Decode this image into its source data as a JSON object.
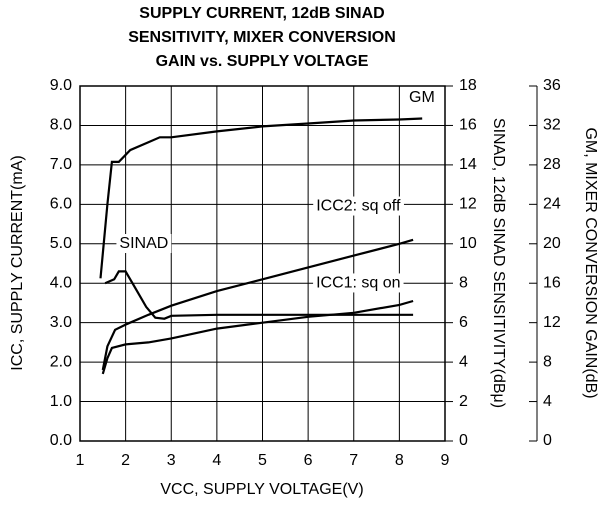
{
  "chart_data": {
    "type": "line",
    "title": [
      "SUPPLY CURRENT, 12dB SINAD",
      "SENSITIVITY, MIXER CONVERSION",
      "GAIN vs. SUPPLY VOLTAGE"
    ],
    "xlabel": "VCC, SUPPLY VOLTAGE(V)",
    "ylabel": "ICC, SUPPLY CURRENT(mA)",
    "y2label": "SINAD, 12dB SINAD SENSITIVITY(dBμ)",
    "y3label": "GM, MIXER CONVERSION GAIN(dB)",
    "xlim": [
      1,
      9
    ],
    "xticks": [
      1,
      2,
      3,
      4,
      5,
      6,
      7,
      8,
      9
    ],
    "ylim": [
      0,
      9
    ],
    "yticks": [
      {
        "value": 0,
        "label": "0.0"
      },
      {
        "value": 1,
        "label": "1.0"
      },
      {
        "value": 2,
        "label": "2.0"
      },
      {
        "value": 3,
        "label": "3.0"
      },
      {
        "value": 4,
        "label": "4.0"
      },
      {
        "value": 5,
        "label": "5.0"
      },
      {
        "value": 6,
        "label": "6.0"
      },
      {
        "value": 7,
        "label": "7.0"
      },
      {
        "value": 8,
        "label": "8.0"
      },
      {
        "value": 9,
        "label": "9.0"
      }
    ],
    "y2lim": [
      0,
      18
    ],
    "y2ticks": [
      0,
      2,
      4,
      6,
      8,
      10,
      12,
      14,
      16,
      18
    ],
    "y3lim": [
      0,
      36
    ],
    "y3ticks": [
      0,
      4,
      8,
      12,
      16,
      20,
      24,
      28,
      32,
      36
    ],
    "grid": true,
    "series": [
      {
        "name": "GM",
        "color": "#000000",
        "axis": "y3",
        "x": [
          1.45,
          1.6,
          1.7,
          1.85,
          2.1,
          2.5,
          2.75,
          3,
          4,
          5,
          6,
          7,
          8,
          8.5
        ],
        "values": [
          16.5,
          24,
          28.3,
          28.3,
          29.5,
          30.3,
          30.8,
          30.8,
          31.4,
          31.9,
          32.2,
          32.5,
          32.6,
          32.7
        ]
      },
      {
        "name": "SINAD",
        "color": "#000000",
        "axis": "y2",
        "x": [
          1.55,
          1.75,
          1.85,
          2.0,
          2.2,
          2.45,
          2.65,
          2.85,
          3,
          4,
          5,
          6,
          7,
          8.3
        ],
        "values": [
          8,
          8.2,
          8.6,
          8.6,
          7.8,
          6.8,
          6.25,
          6.2,
          6.35,
          6.4,
          6.4,
          6.4,
          6.4,
          6.4
        ]
      },
      {
        "name": "ICC2: sq off",
        "color": "#000000",
        "axis": "y",
        "x": [
          1.5,
          1.6,
          1.77,
          2,
          2.5,
          3,
          4,
          5,
          6,
          7,
          8,
          8.3
        ],
        "values": [
          1.8,
          2.4,
          2.82,
          2.95,
          3.2,
          3.43,
          3.8,
          4.1,
          4.4,
          4.7,
          5.0,
          5.1
        ]
      },
      {
        "name": "ICC1: sq on",
        "color": "#000000",
        "axis": "y",
        "x": [
          1.5,
          1.6,
          1.7,
          2,
          2.5,
          3,
          4,
          5,
          6,
          7,
          8,
          8.3
        ],
        "values": [
          1.7,
          2.1,
          2.36,
          2.45,
          2.5,
          2.6,
          2.85,
          3.0,
          3.15,
          3.25,
          3.45,
          3.55
        ]
      }
    ]
  }
}
